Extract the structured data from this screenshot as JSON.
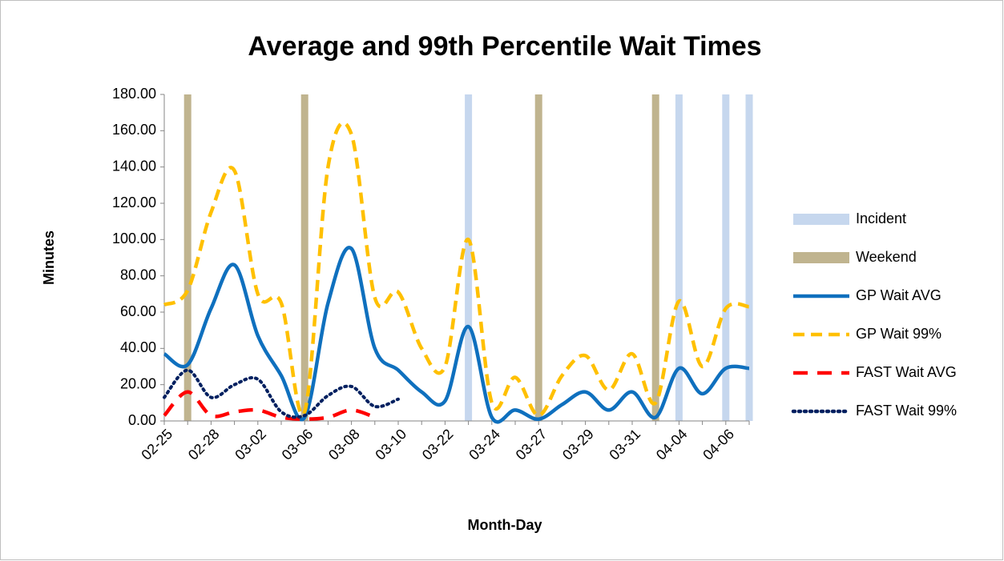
{
  "chart_data": {
    "type": "line",
    "title": "Average and 99th Percentile Wait Times",
    "x_label": "Month-Day",
    "y_label": "Minutes",
    "categories": [
      "02-25",
      null,
      "02-28",
      null,
      "03-02",
      null,
      "03-06",
      null,
      "03-08",
      null,
      "03-10",
      null,
      "03-22",
      null,
      "03-24",
      null,
      "03-27",
      null,
      "03-29",
      null,
      "03-31",
      null,
      "04-04",
      null,
      "04-06",
      null
    ],
    "ylim": [
      0,
      180
    ],
    "yticks": [
      {
        "value": 0,
        "label": "0.00"
      },
      {
        "value": 20,
        "label": "20.00"
      },
      {
        "value": 40,
        "label": "40.00"
      },
      {
        "value": 60,
        "label": "60.00"
      },
      {
        "value": 80,
        "label": "80.00"
      },
      {
        "value": 100,
        "label": "100.00"
      },
      {
        "value": 120,
        "label": "120.00"
      },
      {
        "value": 140,
        "label": "140.00"
      },
      {
        "value": 160,
        "label": "160.00"
      },
      {
        "value": 180,
        "label": "180.00"
      }
    ],
    "smooth": true,
    "legend": "right",
    "series": [
      {
        "name": "Incident",
        "kind": "bar",
        "color": "#c6d7ee",
        "values": [
          null,
          null,
          null,
          null,
          null,
          null,
          null,
          null,
          null,
          null,
          null,
          null,
          null,
          180,
          null,
          null,
          null,
          null,
          null,
          null,
          null,
          null,
          180,
          null,
          180,
          180
        ]
      },
      {
        "name": "Weekend",
        "kind": "bar",
        "color": "#c0b48f",
        "values": [
          null,
          180,
          null,
          null,
          null,
          null,
          180,
          null,
          null,
          null,
          null,
          null,
          null,
          null,
          null,
          null,
          180,
          null,
          null,
          null,
          null,
          180,
          null,
          null,
          null,
          null
        ]
      },
      {
        "name": "GP Wait AVG",
        "kind": "line",
        "dash": "solid",
        "color": "#0f70be",
        "values": [
          37,
          31,
          62,
          86,
          47,
          25,
          2,
          65,
          95,
          40,
          28,
          16,
          11,
          52,
          2,
          6,
          1,
          9,
          16,
          6,
          16,
          2,
          29,
          15,
          29,
          29
        ]
      },
      {
        "name": "GP Wait 99%",
        "kind": "line",
        "dash": "dashed",
        "color": "#ffc000",
        "values": [
          64,
          72,
          115,
          138,
          70,
          65,
          5,
          140,
          158,
          68,
          71,
          40,
          30,
          100,
          10,
          24,
          3,
          25,
          36,
          17,
          37,
          10,
          66,
          30,
          62,
          63
        ]
      },
      {
        "name": "FAST Wait AVG",
        "kind": "line",
        "dash": "longdash",
        "color": "#ff0000",
        "values": [
          3,
          16,
          3,
          5,
          6,
          2,
          1,
          2,
          6,
          2,
          null,
          null,
          null,
          null,
          null,
          null,
          null,
          null,
          null,
          null,
          null,
          null,
          null,
          null,
          null,
          null
        ]
      },
      {
        "name": "FAST Wait 99%",
        "kind": "line",
        "dash": "dotted",
        "color": "#002060",
        "values": [
          13,
          28,
          13,
          20,
          23,
          5,
          3,
          14,
          19,
          8,
          12,
          null,
          null,
          null,
          null,
          null,
          null,
          null,
          null,
          null,
          null,
          null,
          null,
          null,
          null,
          null
        ]
      }
    ]
  }
}
